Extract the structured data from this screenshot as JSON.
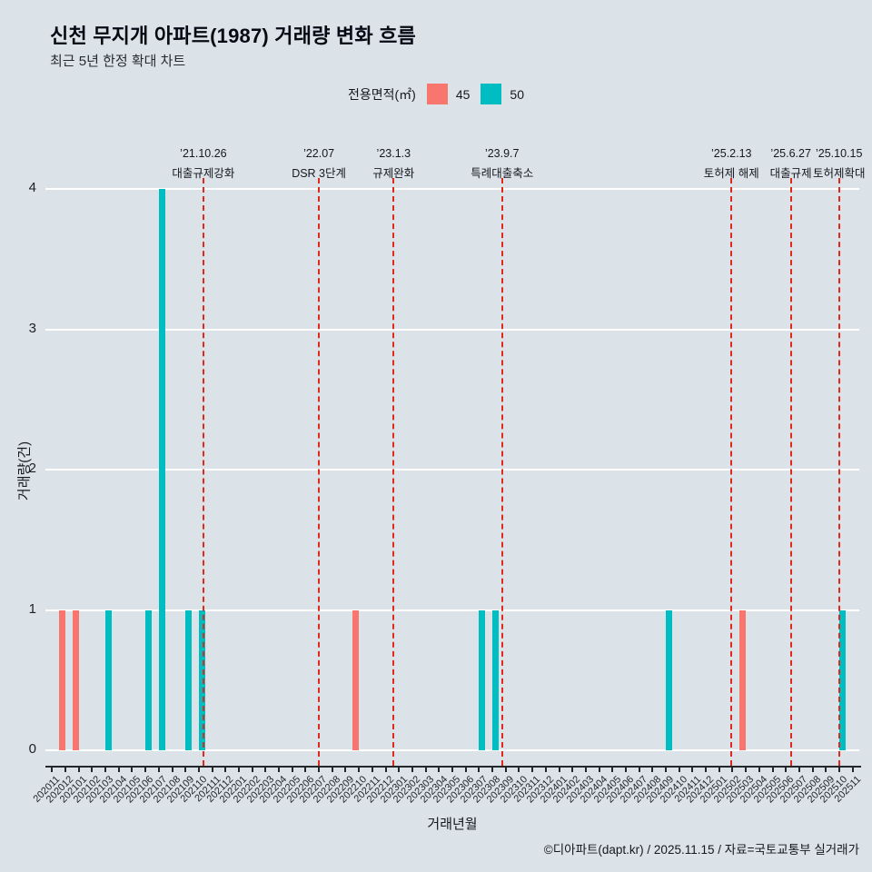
{
  "header": {
    "title": "신천 무지개 아파트(1987) 거래량 변화 흐름",
    "subtitle": "최근 5년 한정 확대 차트"
  },
  "legend": {
    "title": "전용면적(㎡)",
    "items": [
      {
        "label": "45",
        "color": "#f8766d"
      },
      {
        "label": "50",
        "color": "#00bdc2"
      }
    ]
  },
  "footer": {
    "credit": "©디아파트(dapt.kr) / 2025.11.15 / 자료=국토교통부 실거래가"
  },
  "colors": {
    "background": "#dbe2e8",
    "gridline": "#ffffff",
    "event_line": "#e0291d",
    "axis": "#23262b",
    "bar_45": "#f8766d",
    "bar_50": "#00bdc2"
  },
  "chart_data": {
    "type": "bar",
    "title": "신천 무지개 아파트(1987) 거래량 변화 흐름",
    "subtitle": "최근 5년 한정 확대 차트",
    "xlabel": "거래년월",
    "ylabel": "거래량(건)",
    "ylim": [
      0,
      4
    ],
    "yticks": [
      0,
      1,
      2,
      3,
      4
    ],
    "grid": "horizontal-white",
    "legend_position": "top-center",
    "categories": [
      "202011",
      "202012",
      "202101",
      "202102",
      "202103",
      "202104",
      "202105",
      "202106",
      "202107",
      "202108",
      "202109",
      "202110",
      "202111",
      "202112",
      "202201",
      "202202",
      "202203",
      "202204",
      "202205",
      "202206",
      "202207",
      "202208",
      "202209",
      "202210",
      "202211",
      "202212",
      "202301",
      "202302",
      "202303",
      "202304",
      "202305",
      "202306",
      "202307",
      "202308",
      "202309",
      "202310",
      "202311",
      "202312",
      "202401",
      "202402",
      "202403",
      "202404",
      "202405",
      "202406",
      "202407",
      "202408",
      "202409",
      "202410",
      "202411",
      "202412",
      "202501",
      "202502",
      "202503",
      "202504",
      "202505",
      "202506",
      "202507",
      "202508",
      "202509",
      "202510",
      "202511"
    ],
    "series": [
      {
        "name": "45",
        "color": "#f8766d",
        "points": {
          "202012": 1,
          "202101": 1,
          "202210": 1,
          "202503": 1
        }
      },
      {
        "name": "50",
        "color": "#00bdc2",
        "points": {
          "202103": 1,
          "202106": 1,
          "202107": 4,
          "202109": 1,
          "202110": 1,
          "202307": 1,
          "202308": 1,
          "202409": 1,
          "202510": 1
        }
      }
    ],
    "events": [
      {
        "date": "’21.10.26",
        "label": "대출규제강화",
        "month": "202110",
        "day": 26
      },
      {
        "date": "’22.07",
        "label": "DSR 3단계",
        "month": "202207",
        "day": null
      },
      {
        "date": "’23.1.3",
        "label": "규제완화",
        "month": "202301",
        "day": 3
      },
      {
        "date": "’23.9.7",
        "label": "특례대출축소",
        "month": "202309",
        "day": 7
      },
      {
        "date": "’25.2.13",
        "label": "토허제 해제",
        "month": "202502",
        "day": 13
      },
      {
        "date": "’25.6.27",
        "label": "대출규제",
        "month": "202506",
        "day": 27
      },
      {
        "date": "’25.10.15",
        "label": "토허제확대",
        "month": "202510",
        "day": 15
      }
    ]
  }
}
